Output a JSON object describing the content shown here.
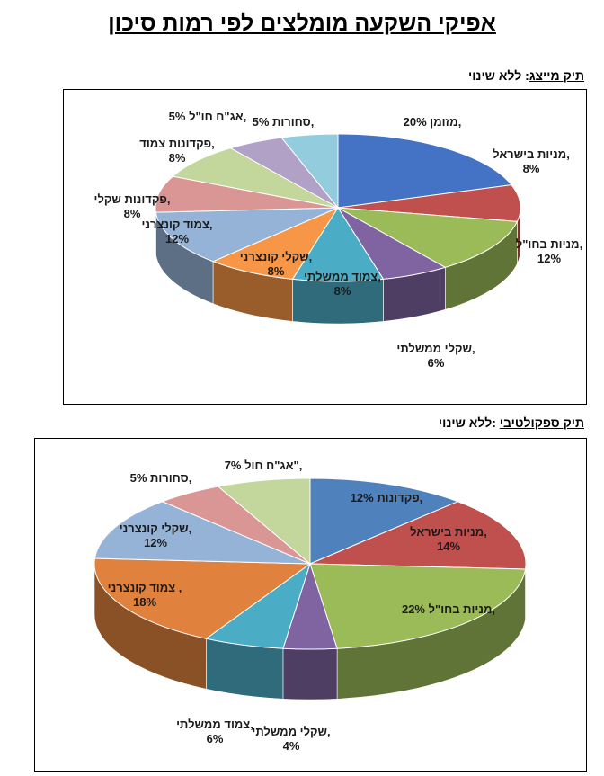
{
  "page": {
    "title": "אפיקי השקעה מומלצים לפי רמות סיכון",
    "sections": [
      {
        "name_label": "תיק מייצג",
        "separator": ":",
        "status": " ללא שינוי"
      },
      {
        "name_label": "תיק ספקולטיבי",
        "separator": " :",
        "status": "ללא שינוי"
      }
    ]
  },
  "chart_data": [
    {
      "type": "pie",
      "style": "3d",
      "slices": [
        {
          "label": "מזומן,",
          "value": 20,
          "value_text": "20%",
          "color": "#4472C4"
        },
        {
          "label": "מניות בישראל,",
          "value": 8,
          "value_text": "8%",
          "color": "#C0504D"
        },
        {
          "label": "מניות בחו\"ל,",
          "value": 12,
          "value_text": "12%",
          "color": "#9BBB59"
        },
        {
          "label": "שקלי ממשלתי,",
          "value": 6,
          "value_text": "6%",
          "color": "#8064A2"
        },
        {
          "label": "צמוד ממשלתי,",
          "value": 8,
          "value_text": "8%",
          "color": "#4BACC6"
        },
        {
          "label": "שקלי קונצרני,",
          "value": 8,
          "value_text": "8%",
          "color": "#F79646"
        },
        {
          "label": "צמוד קונצרני,",
          "value": 12,
          "value_text": "12%",
          "color": "#95B3D7"
        },
        {
          "label": "פקדונות שקלי,",
          "value": 8,
          "value_text": "8%",
          "color": "#D99694"
        },
        {
          "label": "פקדונות צמוד,",
          "value": 8,
          "value_text": "8%",
          "color": "#C3D69B"
        },
        {
          "label": "אג\"ח חו\"ל,",
          "value": 5,
          "value_text": "5%",
          "color": "#B2A1C7"
        },
        {
          "label": "סחורות,",
          "value": 5,
          "value_text": "5%",
          "color": "#93CDDD"
        }
      ]
    },
    {
      "type": "pie",
      "style": "3d",
      "slices": [
        {
          "label": "פקדונות,",
          "value": 12,
          "value_text": "12%",
          "color": "#4F81BD"
        },
        {
          "label": "מניות בישראל,",
          "value": 14,
          "value_text": "14%",
          "color": "#C0504D"
        },
        {
          "label": "מניות בחו\"ל,",
          "value": 22,
          "value_text": "22%",
          "color": "#9BBB59"
        },
        {
          "label": "שקלי ממשלתי,",
          "value": 4,
          "value_text": "4%",
          "color": "#8064A2"
        },
        {
          "label": "צמוד ממשלתי,",
          "value": 6,
          "value_text": "6%",
          "color": "#4BACC6"
        },
        {
          "label": "צמוד קונצרני ,",
          "value": 18,
          "value_text": "18%",
          "color": "#E0823D"
        },
        {
          "label": "שקלי קונצרני,",
          "value": 12,
          "value_text": "12%",
          "color": "#95B3D7"
        },
        {
          "label": "סחורות,",
          "value": 5,
          "value_text": "5%",
          "color": "#D99694"
        },
        {
          "label": "אג\"ח חול\",",
          "value": 7,
          "value_text": "7%",
          "color": "#C3D69B"
        }
      ]
    }
  ]
}
